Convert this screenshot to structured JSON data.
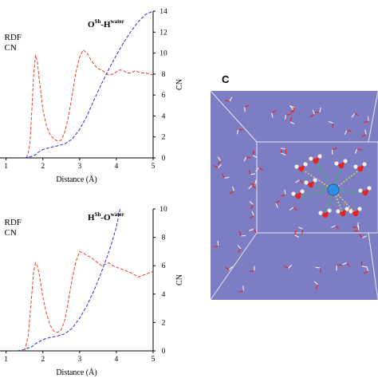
{
  "chart_data": [
    {
      "type": "line",
      "title_main": "O",
      "title_sup1": "Sh",
      "title_mid": "-H",
      "title_sup2": "water",
      "legend": [
        "RDF",
        "CN"
      ],
      "xlabel": "Distance (Å)",
      "ylabel_right": "CN",
      "xlim": [
        0,
        5
      ],
      "ylim_right": [
        0,
        14
      ],
      "x_ticks": [
        "1",
        "2",
        "3",
        "4",
        "5"
      ],
      "y_right_ticks": [
        "0",
        "2",
        "4",
        "6",
        "8",
        "10",
        "12",
        "14"
      ],
      "colors": {
        "rdf": "#e8402a",
        "cn": "#2b2bd0"
      },
      "series": [
        {
          "name": "RDF",
          "axis": "scaled",
          "x": [
            1.55,
            1.6,
            1.65,
            1.7,
            1.75,
            1.8,
            1.85,
            1.9,
            2.0,
            2.1,
            2.2,
            2.3,
            2.4,
            2.5,
            2.6,
            2.7,
            2.8,
            2.9,
            3.0,
            3.1,
            3.2,
            3.3,
            3.4,
            3.5,
            3.6,
            3.7,
            3.8,
            3.9,
            4.0,
            4.1,
            4.2,
            4.3,
            4.4,
            4.5,
            4.6,
            4.7,
            4.8,
            4.9,
            5.0
          ],
          "y": [
            0.0,
            0.4,
            1.5,
            4.5,
            8.0,
            9.8,
            9.2,
            7.5,
            4.6,
            3.0,
            2.2,
            1.8,
            1.6,
            1.7,
            2.5,
            4.0,
            6.0,
            8.2,
            9.6,
            10.3,
            10.0,
            9.4,
            8.9,
            8.5,
            8.4,
            8.1,
            7.9,
            8.0,
            8.2,
            8.4,
            8.3,
            8.1,
            8.1,
            8.3,
            8.2,
            8.1,
            8.1,
            8.0,
            7.9
          ]
        },
        {
          "name": "CN",
          "axis": "right",
          "x": [
            1.5,
            1.7,
            1.8,
            1.9,
            2.0,
            2.2,
            2.4,
            2.6,
            2.8,
            3.0,
            3.2,
            3.4,
            3.6,
            3.8,
            4.0,
            4.2,
            4.4,
            4.6,
            4.8,
            5.0
          ],
          "y": [
            0.0,
            0.15,
            0.3,
            0.6,
            0.8,
            1.0,
            1.15,
            1.35,
            1.8,
            2.7,
            4.0,
            5.6,
            7.1,
            8.5,
            9.8,
            11.0,
            12.1,
            13.0,
            13.7,
            14.2
          ]
        }
      ]
    },
    {
      "type": "line",
      "title_main": "H",
      "title_sup1": "Sh",
      "title_mid": "-O",
      "title_sup2": "water",
      "legend": [
        "RDF",
        "CN"
      ],
      "xlabel": "Distance (Å)",
      "ylabel_right": "CN",
      "xlim": [
        0,
        5
      ],
      "ylim_right": [
        0,
        10
      ],
      "x_ticks": [
        "1",
        "2",
        "3",
        "4",
        "5"
      ],
      "y_right_ticks": [
        "0",
        "2",
        "4",
        "6",
        "8",
        "10"
      ],
      "colors": {
        "rdf": "#e8402a",
        "cn": "#2b2bd0"
      },
      "series": [
        {
          "name": "RDF",
          "axis": "scaled",
          "x": [
            1.5,
            1.6,
            1.7,
            1.75,
            1.8,
            1.85,
            1.9,
            2.0,
            2.1,
            2.2,
            2.3,
            2.4,
            2.5,
            2.6,
            2.7,
            2.8,
            2.9,
            3.0,
            3.1,
            3.2,
            3.3,
            3.4,
            3.5,
            3.6,
            3.7,
            3.8,
            3.9,
            4.0,
            4.2,
            4.4,
            4.6,
            4.8,
            5.0
          ],
          "y": [
            0.0,
            1.0,
            4.0,
            5.6,
            6.2,
            6.0,
            5.4,
            3.8,
            2.6,
            1.8,
            1.4,
            1.3,
            1.5,
            2.2,
            3.6,
            5.1,
            6.3,
            7.0,
            6.9,
            6.7,
            6.6,
            6.4,
            6.2,
            6.0,
            6.1,
            6.2,
            6.0,
            5.9,
            5.7,
            5.5,
            5.2,
            5.4,
            5.6
          ]
        },
        {
          "name": "CN",
          "axis": "right",
          "x": [
            1.3,
            1.5,
            1.7,
            1.8,
            1.9,
            2.0,
            2.2,
            2.4,
            2.6,
            2.8,
            3.0,
            3.2,
            3.4,
            3.6,
            3.8,
            4.0,
            4.1
          ],
          "y": [
            0.0,
            0.1,
            0.3,
            0.5,
            0.65,
            0.8,
            0.95,
            1.05,
            1.2,
            1.6,
            2.3,
            3.2,
            4.3,
            5.6,
            7.0,
            8.7,
            10.0
          ]
        }
      ]
    }
  ],
  "panel_c": {
    "letter": "C",
    "background": "#7d7dc3",
    "central_atom": "#2f8fe0",
    "oxygen": "#e32222",
    "hydrogen": "#f0f0f0",
    "hbond_green": "#33c15a",
    "hbond_yellow": "#e6d84a"
  }
}
